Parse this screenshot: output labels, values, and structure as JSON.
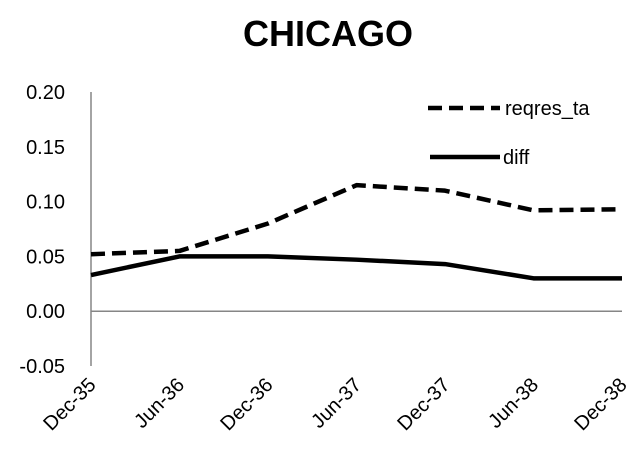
{
  "chart_data": {
    "type": "line",
    "title": "CHICAGO",
    "xlabel": "",
    "ylabel": "",
    "categories": [
      "Dec-35",
      "Jun-36",
      "Dec-36",
      "Jun-37",
      "Dec-37",
      "Jun-38",
      "Dec-38"
    ],
    "yticks": [
      "0.20",
      "0.15",
      "0.10",
      "0.05",
      "0.00",
      "-0.05"
    ],
    "ylim": [
      -0.05,
      0.2
    ],
    "grid": false,
    "legend_position": "top-right",
    "series": [
      {
        "name": "reqres_ta",
        "style": "dashed",
        "color": "#000000",
        "values": [
          0.052,
          0.055,
          0.08,
          0.115,
          0.11,
          0.092,
          0.093
        ]
      },
      {
        "name": "diff",
        "style": "solid",
        "color": "#000000",
        "values": [
          0.033,
          0.05,
          0.05,
          0.047,
          0.043,
          0.03,
          0.03
        ]
      }
    ]
  }
}
